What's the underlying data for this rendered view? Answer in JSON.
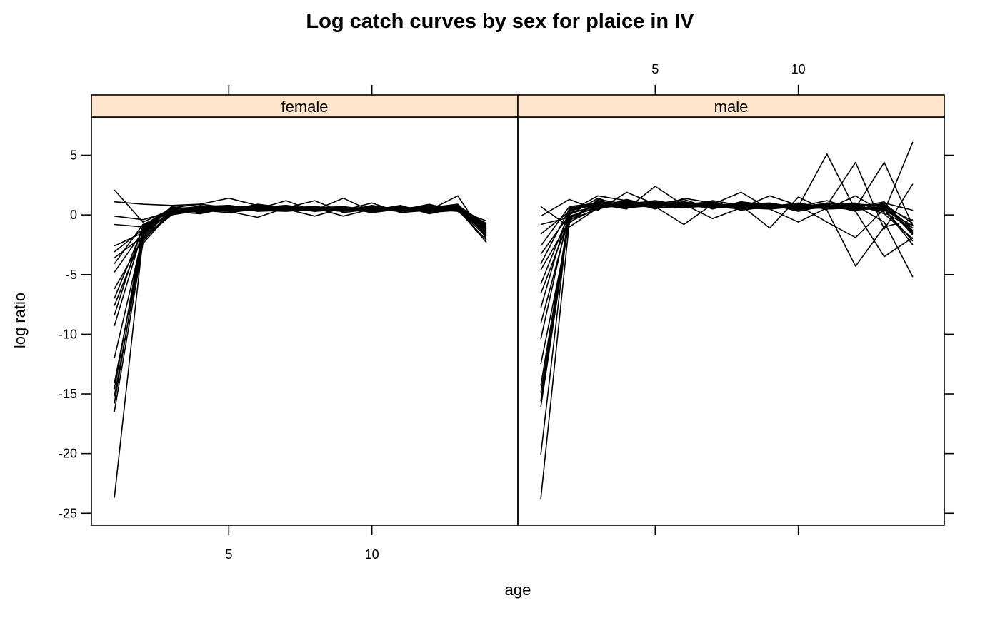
{
  "chart_data": {
    "type": "line",
    "title": "Log catch curves by sex for plaice in IV",
    "xlabel": "age",
    "ylabel": "log ratio",
    "xlim": [
      0.2,
      15.1
    ],
    "ylim": [
      -26,
      8.2
    ],
    "x_ticks": [
      5,
      10
    ],
    "x_tick_labels": [
      "5",
      "10"
    ],
    "y_ticks": [
      5,
      0,
      -5,
      -10,
      -15,
      -20,
      -25
    ],
    "y_tick_labels": [
      "5",
      "0",
      "-5",
      "-10",
      "-15",
      "-20",
      "-25"
    ],
    "layout": "two panels side by side, shared y axis",
    "strip_color": "#ffe5cc",
    "line_color": "#000000",
    "grid": false,
    "panels": [
      {
        "name": "female",
        "ages": [
          1,
          2,
          3,
          4,
          5,
          6,
          7,
          8,
          9,
          10,
          11,
          12,
          13,
          14
        ],
        "series": [
          {
            "values": [
              2.1,
              -0.6,
              0.5,
              0.6,
              0.8,
              0.5,
              0.7,
              0.4,
              0.6,
              0.5,
              0.3,
              0.6,
              0.8,
              -0.8
            ]
          },
          {
            "values": [
              1.1,
              0.9,
              0.8,
              0.9,
              0.6,
              0.8,
              0.5,
              0.6,
              0.7,
              0.4,
              0.5,
              0.4,
              0.6,
              -1.2
            ]
          },
          {
            "values": [
              -0.1,
              -0.4,
              0.3,
              0.7,
              0.5,
              0.6,
              0.4,
              0.5,
              0.3,
              0.6,
              0.4,
              0.5,
              0.3,
              -1.0
            ]
          },
          {
            "values": [
              -0.8,
              -1.0,
              0.6,
              0.9,
              1.4,
              0.8,
              0.5,
              0.4,
              0.6,
              0.5,
              0.6,
              0.3,
              0.5,
              -1.5
            ]
          },
          {
            "values": [
              -2.6,
              -1.5,
              0.2,
              0.3,
              0.4,
              0.9,
              0.6,
              0.7,
              0.4,
              0.3,
              0.5,
              0.6,
              0.4,
              -0.9
            ]
          },
          {
            "values": [
              -3.1,
              -1.2,
              0.4,
              0.5,
              0.3,
              0.5,
              1.2,
              0.3,
              0.5,
              0.6,
              0.4,
              0.3,
              0.6,
              -1.3
            ]
          },
          {
            "values": [
              -3.6,
              -1.8,
              0.0,
              0.6,
              0.5,
              0.4,
              0.6,
              1.2,
              0.2,
              0.5,
              0.3,
              0.6,
              0.4,
              -1.8
            ]
          },
          {
            "values": [
              -4.1,
              -0.8,
              0.3,
              0.1,
              0.6,
              0.7,
              0.5,
              0.4,
              1.4,
              0.3,
              0.6,
              0.5,
              0.7,
              -1.1
            ]
          },
          {
            "values": [
              -4.8,
              -1.4,
              0.7,
              0.4,
              0.2,
              0.5,
              0.6,
              0.5,
              0.4,
              1.0,
              0.2,
              0.4,
              0.5,
              -1.6
            ]
          },
          {
            "values": [
              -6.2,
              -2.0,
              0.1,
              0.7,
              0.8,
              0.3,
              0.4,
              0.6,
              0.5,
              0.4,
              0.8,
              0.1,
              0.6,
              -0.7
            ]
          },
          {
            "values": [
              -7.0,
              -1.1,
              0.5,
              0.2,
              0.5,
              0.6,
              0.8,
              0.3,
              0.5,
              0.6,
              0.4,
              0.9,
              0.3,
              -1.4
            ]
          },
          {
            "values": [
              -7.6,
              -1.6,
              0.3,
              0.6,
              0.4,
              0.5,
              0.5,
              0.6,
              -0.1,
              0.5,
              0.7,
              0.4,
              1.6,
              -2.0
            ]
          },
          {
            "values": [
              -8.4,
              -0.9,
              0.6,
              0.5,
              0.7,
              0.4,
              0.3,
              0.5,
              0.6,
              0.2,
              0.5,
              0.7,
              0.5,
              -2.3
            ]
          },
          {
            "values": [
              -9.3,
              -1.3,
              0.2,
              0.8,
              0.3,
              -0.2,
              0.6,
              0.4,
              0.5,
              0.7,
              0.3,
              0.5,
              0.8,
              -1.2
            ]
          },
          {
            "values": [
              -12.0,
              -1.7,
              0.4,
              0.4,
              0.6,
              0.7,
              0.5,
              -0.1,
              0.6,
              0.4,
              0.6,
              0.2,
              0.4,
              -0.5
            ]
          },
          {
            "values": [
              -14.1,
              -1.9,
              0.5,
              0.7,
              0.5,
              0.6,
              0.7,
              0.5,
              0.3,
              0.8,
              0.4,
              0.6,
              0.9,
              -1.5
            ]
          },
          {
            "values": [
              -14.6,
              -1.2,
              0.1,
              0.6,
              0.8,
              0.5,
              0.4,
              0.7,
              0.5,
              0.5,
              0.6,
              0.4,
              0.5,
              -0.8
            ]
          },
          {
            "values": [
              -15.2,
              -2.2,
              0.4,
              0.3,
              0.4,
              0.8,
              0.6,
              0.3,
              0.7,
              0.3,
              0.5,
              0.8,
              0.6,
              -1.7
            ]
          },
          {
            "values": [
              -15.8,
              -1.5,
              0.6,
              0.5,
              0.5,
              0.4,
              0.5,
              0.6,
              0.4,
              0.6,
              0.3,
              0.5,
              0.7,
              -1.0
            ]
          },
          {
            "values": [
              -16.5,
              -2.4,
              0.3,
              0.7,
              0.6,
              0.6,
              0.8,
              0.5,
              0.6,
              0.5,
              0.7,
              0.3,
              0.4,
              -2.1
            ]
          },
          {
            "values": [
              -23.7,
              -2.0,
              0.0,
              0.4,
              0.5,
              0.5,
              0.6,
              0.4,
              0.5,
              0.6,
              0.5,
              0.6,
              0.5,
              -1.4
            ]
          }
        ]
      },
      {
        "name": "male",
        "ages": [
          1,
          2,
          3,
          4,
          5,
          6,
          7,
          8,
          9,
          10,
          11,
          12,
          13,
          14
        ],
        "series": [
          {
            "values": [
              0.7,
              -1.0,
              0.6,
              0.8,
              1.0,
              0.6,
              0.8,
              0.7,
              0.5,
              0.7,
              5.1,
              0.4,
              1.0,
              0.4
            ]
          },
          {
            "values": [
              -0.1,
              1.3,
              0.4,
              1.9,
              0.9,
              1.1,
              0.7,
              0.5,
              0.9,
              0.3,
              0.8,
              4.4,
              -1.2,
              2.6
            ]
          },
          {
            "values": [
              -0.8,
              -0.2,
              0.9,
              0.5,
              2.4,
              0.8,
              0.6,
              0.8,
              0.6,
              0.9,
              0.5,
              0.6,
              4.4,
              -0.9
            ]
          },
          {
            "values": [
              -1.6,
              0.3,
              1.6,
              1.2,
              0.5,
              1.4,
              1.0,
              0.4,
              0.7,
              0.5,
              1.0,
              0.7,
              0.3,
              6.1
            ]
          },
          {
            "values": [
              -2.6,
              0.7,
              1.0,
              0.8,
              0.7,
              -0.8,
              0.9,
              1.9,
              0.5,
              -0.6,
              0.6,
              0.9,
              0.8,
              -1.6
            ]
          },
          {
            "values": [
              -3.3,
              0.0,
              1.4,
              0.6,
              1.1,
              0.9,
              -0.3,
              0.6,
              1.6,
              0.8,
              -0.6,
              -1.9,
              0.5,
              -2.5
            ]
          },
          {
            "values": [
              -4.1,
              0.5,
              0.8,
              1.0,
              0.6,
              0.7,
              1.2,
              0.8,
              -1.1,
              1.5,
              0.4,
              -4.3,
              -1.0,
              -0.4
            ]
          },
          {
            "values": [
              -4.6,
              -0.5,
              1.2,
              0.7,
              0.9,
              1.3,
              0.5,
              1.1,
              0.8,
              0.4,
              0.9,
              0.3,
              -3.5,
              -1.9
            ]
          },
          {
            "values": [
              -5.8,
              0.2,
              0.7,
              1.1,
              0.8,
              0.6,
              1.0,
              0.6,
              1.0,
              0.6,
              0.7,
              0.8,
              -0.6,
              -5.2
            ]
          },
          {
            "values": [
              -6.6,
              -0.3,
              1.0,
              0.9,
              1.2,
              0.8,
              0.7,
              0.9,
              0.7,
              1.0,
              0.5,
              1.6,
              0.2,
              -1.1
            ]
          },
          {
            "values": [
              -7.8,
              0.6,
              0.9,
              0.6,
              0.8,
              1.0,
              0.8,
              0.7,
              0.9,
              0.7,
              1.2,
              0.5,
              0.7,
              -1.4
            ]
          },
          {
            "values": [
              -9.1,
              -0.1,
              0.6,
              1.3,
              0.7,
              0.9,
              1.1,
              0.5,
              0.6,
              0.8,
              0.8,
              0.9,
              0.1,
              -2.0
            ]
          },
          {
            "values": [
              -10.4,
              0.4,
              1.1,
              0.8,
              1.0,
              0.7,
              0.9,
              0.8,
              0.8,
              0.5,
              0.6,
              0.7,
              0.9,
              -0.7
            ]
          },
          {
            "values": [
              -12.5,
              -0.7,
              1.3,
              0.9,
              0.6,
              1.1,
              0.6,
              1.0,
              0.7,
              0.9,
              0.7,
              0.4,
              0.6,
              -1.3
            ]
          },
          {
            "values": [
              -14.3,
              0.1,
              0.8,
              0.7,
              0.9,
              0.8,
              0.8,
              0.9,
              1.0,
              0.6,
              0.9,
              1.0,
              0.4,
              -0.9
            ]
          },
          {
            "values": [
              -14.9,
              -0.4,
              0.5,
              1.0,
              1.1,
              0.6,
              1.0,
              0.6,
              0.5,
              0.8,
              0.5,
              0.6,
              1.1,
              -1.7
            ]
          },
          {
            "values": [
              -15.6,
              0.3,
              1.0,
              0.8,
              0.7,
              0.9,
              0.7,
              0.8,
              0.9,
              0.7,
              0.8,
              0.8,
              0.8,
              -1.1
            ]
          },
          {
            "values": [
              -16.1,
              -0.2,
              0.7,
              1.2,
              0.8,
              1.0,
              0.9,
              0.7,
              0.7,
              1.0,
              0.6,
              0.5,
              0.5,
              -2.2
            ]
          },
          {
            "values": [
              -20.1,
              0.5,
              0.9,
              0.6,
              1.0,
              0.7,
              0.8,
              1.0,
              0.8,
              0.6,
              1.0,
              0.9,
              0.7,
              -0.5
            ]
          },
          {
            "values": [
              -23.8,
              -0.6,
              0.6,
              1.0,
              0.9,
              0.8,
              0.6,
              0.9,
              0.6,
              0.9,
              0.7,
              0.7,
              0.9,
              -1.5
            ]
          }
        ]
      }
    ]
  }
}
